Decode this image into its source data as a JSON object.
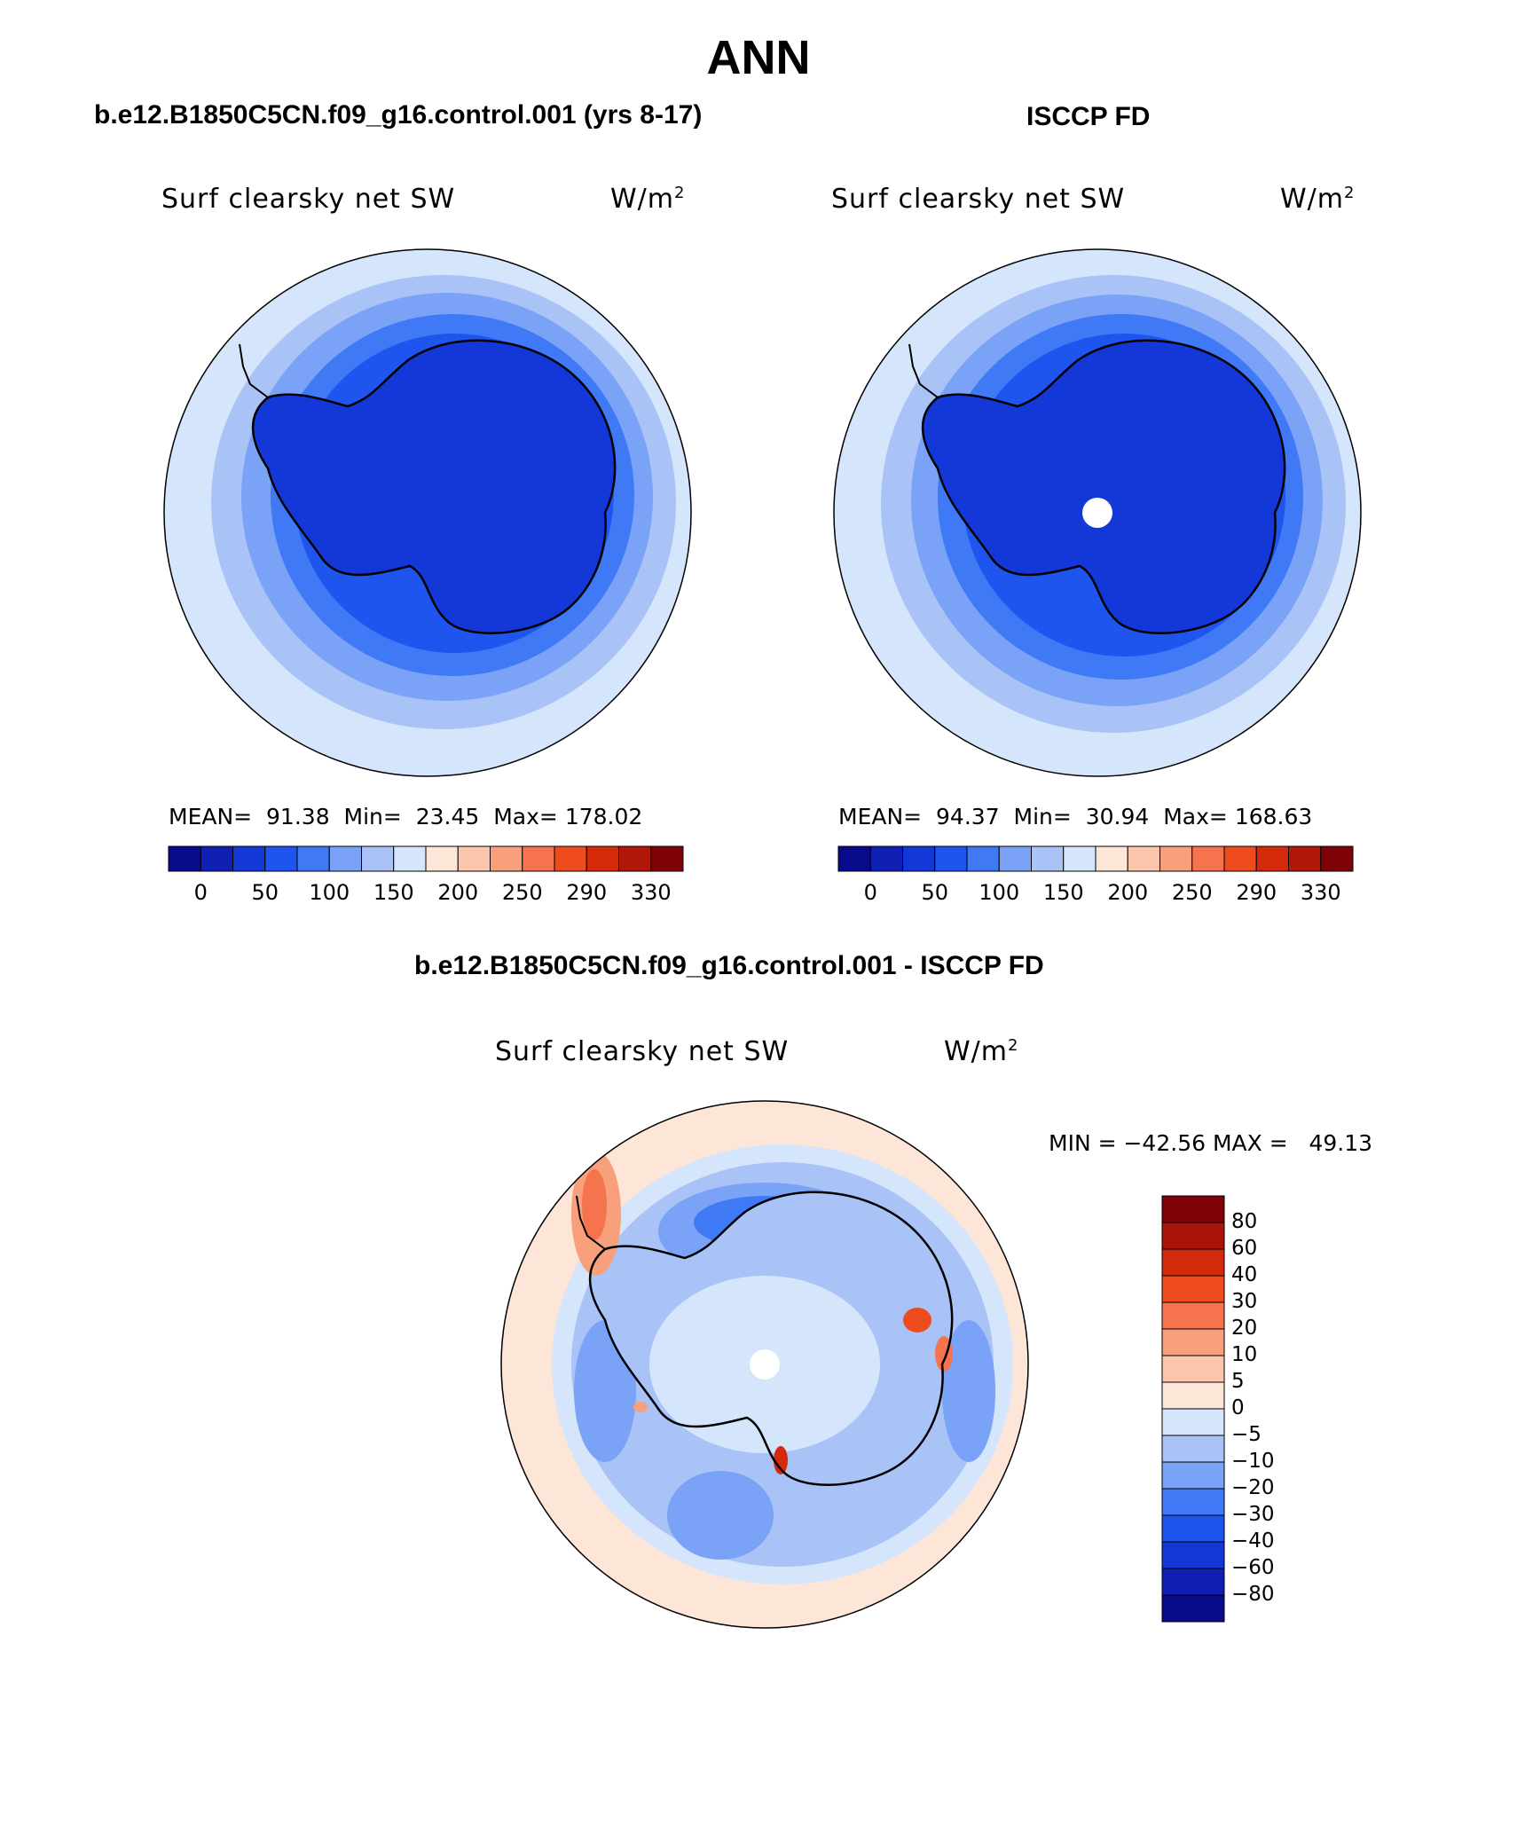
{
  "title": "ANN",
  "panels": [
    {
      "header": "b.e12.B1850C5CN.f09_g16.control.001 (yrs 8-17)",
      "variable": "Surf clearsky net SW",
      "units_base": "W/m",
      "units_exp": "2",
      "stats": {
        "mean_label": "MEAN=",
        "mean": "91.38",
        "min_label": "Min=",
        "min": "23.45",
        "max_label": "Max=",
        "max": "178.02"
      },
      "colorbar_labels": [
        "0",
        "50",
        "100",
        "150",
        "200",
        "250",
        "290",
        "330"
      ]
    },
    {
      "header": "ISCCP FD",
      "variable": "Surf clearsky net SW",
      "units_base": "W/m",
      "units_exp": "2",
      "stats": {
        "mean_label": "MEAN=",
        "mean": "94.37",
        "min_label": "Min=",
        "min": "30.94",
        "max_label": "Max=",
        "max": "168.63"
      },
      "colorbar_labels": [
        "0",
        "50",
        "100",
        "150",
        "200",
        "250",
        "290",
        "330"
      ]
    }
  ],
  "difference": {
    "header": "b.e12.B1850C5CN.f09_g16.control.001 - ISCCP FD",
    "variable": "Surf clearsky net SW",
    "units_base": "W/m",
    "units_exp": "2",
    "minmax": "MIN = −42.56 MAX =   49.13",
    "colorbar_labels": [
      "80",
      "60",
      "40",
      "30",
      "20",
      "10",
      "5",
      "0",
      "−5",
      "−10",
      "−20",
      "−30",
      "−40",
      "−60",
      "−80"
    ]
  },
  "colors": {
    "abs_scale": [
      "#0a0a8c",
      "#0f1fb4",
      "#1437d7",
      "#1f55ef",
      "#3f79f6",
      "#7aa2f6",
      "#a9c3f7",
      "#d5e5fb",
      "#fde6d8",
      "#fbc6ac",
      "#f8a07c",
      "#f5744e",
      "#ee4b1e",
      "#d32a0c",
      "#b2180a",
      "#7f0208"
    ],
    "diff_scale": [
      "#7f0208",
      "#a8140a",
      "#d32a0c",
      "#ee4b1e",
      "#f5744e",
      "#f8a07c",
      "#fbc6ac",
      "#fde6d8",
      "#d5e5fb",
      "#a9c3f7",
      "#7aa2f6",
      "#3f79f6",
      "#1f55ef",
      "#1437d7",
      "#0f1fb4",
      "#0a0a8c"
    ]
  }
}
